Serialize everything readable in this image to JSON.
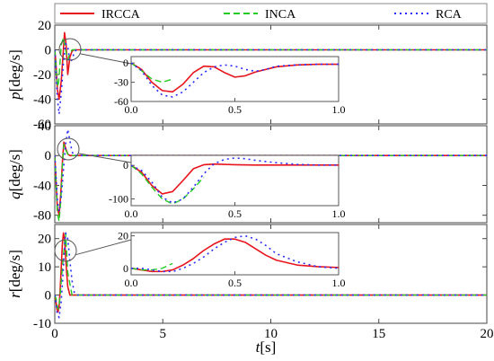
{
  "chart_data": {
    "type": "line",
    "legend": {
      "placement": "top",
      "entries": [
        {
          "name": "IRCCA",
          "color": "#e8141c",
          "dash": "solid"
        },
        {
          "name": "INCA",
          "color": "#22cc22",
          "dash": "dashed"
        },
        {
          "name": "RCA",
          "color": "#2a2aff",
          "dash": "dotted"
        }
      ]
    },
    "xlabel": "t[s]",
    "xlim": [
      0,
      20
    ],
    "xticks": [
      0,
      5,
      10,
      15,
      20
    ],
    "grid": false,
    "panels": [
      {
        "ylabel": "p[deg/s]",
        "ylim": [
          -60,
          20
        ],
        "yticks": [
          -60,
          -40,
          -20,
          0,
          20
        ],
        "series": [
          {
            "name": "IRCCA",
            "x": [
              0,
              0.05,
              0.12,
              0.2,
              0.3,
              0.38,
              0.45,
              0.52,
              0.6,
              0.7,
              0.8,
              0.9,
              1.0,
              20
            ],
            "y": [
              0,
              -10,
              -32,
              -40,
              -25,
              -5,
              14,
              5,
              -20,
              -6,
              -1,
              0,
              0,
              0
            ]
          },
          {
            "name": "INCA",
            "x": [
              0,
              0.05,
              0.1,
              0.15,
              0.2,
              0.25,
              0.3,
              0.4,
              0.5,
              0.6,
              0.7,
              0.8,
              1.0,
              20
            ],
            "y": [
              0,
              -12,
              -25,
              -30,
              -22,
              -8,
              4,
              10,
              0,
              -8,
              -3,
              0,
              0,
              0
            ]
          },
          {
            "name": "RCA",
            "x": [
              0,
              0.05,
              0.12,
              0.2,
              0.3,
              0.4,
              0.5,
              0.6,
              0.7,
              0.8,
              0.9,
              1.0,
              20
            ],
            "y": [
              0,
              -15,
              -40,
              -52,
              -35,
              -10,
              5,
              3,
              -10,
              -8,
              -2,
              0,
              0
            ]
          }
        ],
        "inset": {
          "xlim": [
            0,
            1.0
          ],
          "ylim": [
            -60,
            10
          ],
          "xticks": [
            0.0,
            0.5,
            1.0
          ],
          "yticks": [
            0,
            -30,
            -60
          ],
          "series": [
            {
              "name": "IRCCA",
              "x": [
                0,
                0.05,
                0.1,
                0.15,
                0.2,
                0.25,
                0.3,
                0.35,
                0.4,
                0.45,
                0.5,
                0.55,
                0.6,
                0.7,
                0.8,
                0.9,
                1.0
              ],
              "y": [
                0,
                -10,
                -30,
                -43,
                -45,
                -33,
                -15,
                -5,
                -6,
                -15,
                -22,
                -20,
                -14,
                -6,
                -3,
                -2,
                -2
              ]
            },
            {
              "name": "INCA",
              "x": [
                0,
                0.05,
                0.1,
                0.15,
                0.2
              ],
              "y": [
                0,
                -12,
                -25,
                -30,
                -25
              ]
            },
            {
              "name": "RCA",
              "x": [
                0,
                0.05,
                0.1,
                0.15,
                0.2,
                0.25,
                0.3,
                0.35,
                0.4,
                0.45,
                0.5,
                0.55,
                0.6,
                0.65,
                0.7,
                0.8,
                0.9,
                1.0
              ],
              "y": [
                0,
                -12,
                -35,
                -50,
                -53,
                -45,
                -30,
                -15,
                -6,
                -3,
                -5,
                -10,
                -13,
                -10,
                -5,
                -3,
                -2,
                -2
              ]
            }
          ]
        }
      },
      {
        "ylabel": "q[deg/s]",
        "ylim": [
          -90,
          40
        ],
        "yticks": [
          -80,
          -40,
          0,
          40
        ],
        "series": [
          {
            "name": "IRCCA",
            "x": [
              0,
              0.05,
              0.12,
              0.2,
              0.28,
              0.35,
              0.42,
              0.5,
              0.6,
              0.7,
              0.8,
              20
            ],
            "y": [
              0,
              -30,
              -70,
              -80,
              -50,
              -10,
              18,
              10,
              2,
              0,
              0,
              0
            ]
          },
          {
            "name": "INCA",
            "x": [
              0,
              0.05,
              0.12,
              0.2,
              0.28,
              0.35,
              0.42,
              0.5,
              0.6,
              0.7,
              20
            ],
            "y": [
              0,
              -35,
              -78,
              -88,
              -60,
              -15,
              15,
              8,
              2,
              0,
              0
            ]
          },
          {
            "name": "RCA",
            "x": [
              0,
              0.05,
              0.12,
              0.2,
              0.3,
              0.4,
              0.5,
              0.6,
              0.7,
              0.8,
              0.9,
              20
            ],
            "y": [
              0,
              -25,
              -60,
              -75,
              -55,
              -20,
              15,
              35,
              20,
              5,
              0,
              0
            ]
          }
        ],
        "inset": {
          "xlim": [
            0,
            1.0
          ],
          "ylim": [
            -120,
            30
          ],
          "xticks": [
            0.0,
            0.5,
            1.0
          ],
          "yticks": [
            0,
            -100
          ],
          "series": [
            {
              "name": "IRCCA",
              "x": [
                0,
                0.05,
                0.1,
                0.15,
                0.2,
                0.25,
                0.3,
                0.35,
                0.4,
                0.45,
                0.5,
                0.6,
                0.7,
                0.8,
                0.9,
                1.0
              ],
              "y": [
                0,
                -20,
                -60,
                -85,
                -78,
                -45,
                -10,
                2,
                4,
                3,
                2,
                1,
                1,
                1,
                1,
                1
              ]
            },
            {
              "name": "INCA",
              "x": [
                0,
                0.05,
                0.1,
                0.15,
                0.2,
                0.25,
                0.3,
                0.35
              ],
              "y": [
                0,
                -25,
                -65,
                -100,
                -115,
                -100,
                -70,
                -35
              ]
            },
            {
              "name": "RCA",
              "x": [
                0,
                0.05,
                0.1,
                0.15,
                0.2,
                0.25,
                0.3,
                0.35,
                0.4,
                0.45,
                0.5,
                0.55,
                0.6,
                0.7,
                0.8,
                0.9,
                1.0
              ],
              "y": [
                0,
                -15,
                -50,
                -95,
                -112,
                -100,
                -65,
                -25,
                5,
                18,
                22,
                20,
                15,
                8,
                3,
                1,
                1
              ]
            }
          ]
        }
      },
      {
        "ylabel": "r[deg/s]",
        "ylim": [
          -10,
          25
        ],
        "yticks": [
          -10,
          0,
          10,
          20
        ],
        "series": [
          {
            "name": "IRCCA",
            "x": [
              0,
              0.05,
              0.1,
              0.15,
              0.2,
              0.25,
              0.3,
              0.35,
              0.4,
              0.45,
              0.5,
              0.55,
              0.6,
              0.7,
              0.8,
              0.9,
              1.0,
              20
            ],
            "y": [
              0,
              -2,
              -5,
              -6,
              -4,
              2,
              10,
              18,
              22,
              20,
              14,
              8,
              3,
              0,
              0,
              0,
              0,
              0
            ]
          },
          {
            "name": "INCA",
            "x": [
              0,
              0.05,
              0.1,
              0.15,
              0.2,
              0.25,
              0.3,
              0.4,
              0.5,
              0.6,
              0.8,
              20
            ],
            "y": [
              0,
              -1,
              -3,
              -5,
              -4,
              0,
              5,
              14,
              22,
              8,
              0,
              0
            ]
          },
          {
            "name": "RCA",
            "x": [
              0,
              0.05,
              0.1,
              0.2,
              0.3,
              0.4,
              0.5,
              0.6,
              0.7,
              0.8,
              0.9,
              1.0,
              20
            ],
            "y": [
              0,
              -2,
              -6,
              -8,
              -2,
              10,
              22,
              20,
              12,
              5,
              1,
              0,
              0
            ]
          }
        ],
        "inset": {
          "xlim": [
            0,
            1.0
          ],
          "ylim": [
            -4,
            22
          ],
          "xticks": [
            0.0,
            0.5,
            1.0
          ],
          "yticks": [
            20,
            0
          ],
          "series": [
            {
              "name": "IRCCA",
              "x": [
                0,
                0.05,
                0.1,
                0.15,
                0.2,
                0.25,
                0.3,
                0.35,
                0.4,
                0.45,
                0.5,
                0.55,
                0.6,
                0.65,
                0.7,
                0.8,
                0.9,
                1.0
              ],
              "y": [
                0,
                -1,
                -2,
                -2,
                -1,
                2,
                6,
                11,
                15,
                18,
                18,
                16,
                12,
                8,
                5,
                2,
                1,
                0.5
              ]
            },
            {
              "name": "INCA",
              "x": [
                0,
                0.05,
                0.1,
                0.15,
                0.2
              ],
              "y": [
                0,
                -1,
                -1,
                0,
                3
              ]
            },
            {
              "name": "RCA",
              "x": [
                0,
                0.05,
                0.1,
                0.15,
                0.2,
                0.25,
                0.3,
                0.35,
                0.4,
                0.45,
                0.5,
                0.55,
                0.6,
                0.65,
                0.7,
                0.8,
                0.9,
                1.0
              ],
              "y": [
                0,
                0,
                -1,
                -2,
                -2,
                0,
                3,
                7,
                12,
                16,
                19,
                20,
                18,
                14,
                9,
                4,
                1,
                0
              ]
            }
          ]
        }
      }
    ]
  }
}
